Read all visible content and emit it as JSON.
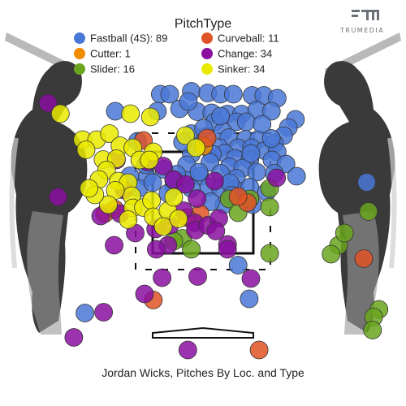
{
  "chart_data": {
    "type": "scatter",
    "title": "PitchType",
    "caption": "Jordan Wicks, Pitches By Loc. and Type",
    "logo": "TRUMEDIA",
    "legend_placement": "top-center",
    "series": [
      {
        "name": "Fastball (4S)",
        "count": 89,
        "color": "#4a78d6",
        "points": [
          [
            -0.73,
            3.92
          ],
          [
            -0.57,
            3.92
          ],
          [
            -0.2,
            3.99
          ],
          [
            0.08,
            3.95
          ],
          [
            0.3,
            3.92
          ],
          [
            0.52,
            3.92
          ],
          [
            0.84,
            3.89
          ],
          [
            1.04,
            3.89
          ],
          [
            1.27,
            3.82
          ],
          [
            -1.5,
            3.5
          ],
          [
            -0.78,
            3.5
          ],
          [
            -0.4,
            3.56
          ],
          [
            -0.1,
            3.49
          ],
          [
            0.15,
            3.46
          ],
          [
            0.42,
            3.43
          ],
          [
            0.66,
            3.43
          ],
          [
            0.92,
            3.53
          ],
          [
            1.17,
            3.5
          ],
          [
            1.58,
            3.3
          ],
          [
            1.46,
            3.1
          ],
          [
            1.38,
            2.9
          ],
          [
            0.2,
            3.24
          ],
          [
            0.57,
            3.24
          ],
          [
            0.74,
            3.24
          ],
          [
            0.34,
            3.0
          ],
          [
            -0.2,
            2.95
          ],
          [
            0.05,
            2.88
          ],
          [
            0.44,
            2.85
          ],
          [
            0.73,
            2.81
          ],
          [
            0.95,
            2.81
          ],
          [
            1.22,
            2.71
          ],
          [
            -0.08,
            2.63
          ],
          [
            0.28,
            2.6
          ],
          [
            0.6,
            2.6
          ],
          [
            0.83,
            2.6
          ],
          [
            1.05,
            2.53
          ],
          [
            1.27,
            2.5
          ],
          [
            0.37,
            2.47
          ],
          [
            0.16,
            2.44
          ],
          [
            -0.2,
            2.44
          ],
          [
            0.55,
            2.34
          ],
          [
            0.8,
            2.3
          ],
          [
            1.18,
            2.3
          ],
          [
            1.42,
            2.2
          ],
          [
            0.12,
            2.24
          ],
          [
            -0.28,
            2.18
          ],
          [
            0.45,
            2.13
          ],
          [
            0.68,
            2.1
          ],
          [
            0.92,
            2.0
          ],
          [
            1.22,
            1.97
          ],
          [
            1.6,
            1.9
          ],
          [
            0.3,
            1.97
          ],
          [
            -0.05,
            1.9
          ],
          [
            0.57,
            1.85
          ],
          [
            -0.28,
            1.8
          ],
          [
            -0.45,
            1.95
          ],
          [
            -0.67,
            2.07
          ],
          [
            -0.96,
            1.87
          ],
          [
            -1.1,
            1.6
          ],
          [
            -0.5,
            1.65
          ],
          [
            -0.2,
            1.6
          ],
          [
            0.1,
            1.63
          ],
          [
            0.3,
            1.6
          ],
          [
            0.55,
            1.57
          ],
          [
            0.8,
            1.63
          ],
          [
            -0.6,
            1.48
          ],
          [
            0.36,
            1.2
          ],
          [
            0.85,
            1.2
          ],
          [
            2.8,
            1.75
          ],
          [
            0.6,
            -0.29
          ],
          [
            0.79,
            -1.12
          ],
          [
            -2.02,
            -1.47
          ],
          [
            -0.86,
            1.74
          ],
          [
            -0.35,
            2.74
          ],
          [
            1.01,
            3.18
          ],
          [
            -1.25,
            1.91
          ],
          [
            0.13,
            1.27
          ],
          [
            -0.5,
            1.8
          ],
          [
            0.46,
            1.74
          ],
          [
            1.09,
            1.51
          ],
          [
            -0.25,
            3.74
          ],
          [
            0.01,
            3.08
          ],
          [
            0.3,
            3.38
          ],
          [
            -1.12,
            2.76
          ],
          [
            0.49,
            1.43
          ],
          [
            -0.98,
            2.18
          ],
          [
            1.17,
            2.83
          ],
          [
            -0.07,
            2.0
          ],
          [
            0.82,
            2.46
          ]
        ]
      },
      {
        "name": "Cutter",
        "count": 1,
        "color": "#f08c00",
        "points": [
          [
            0.01,
            2.64
          ]
        ]
      },
      {
        "name": "Slider",
        "count": 16,
        "color": "#6aa51f",
        "points": [
          [
            0.45,
            1.34
          ],
          [
            0.8,
            1.34
          ],
          [
            1.14,
            1.14
          ],
          [
            1.14,
            1.6
          ],
          [
            0.6,
            1.0
          ],
          [
            -0.35,
            0.37
          ],
          [
            -0.2,
            0.1
          ],
          [
            1.14,
            0.0
          ],
          [
            2.32,
            0.2
          ],
          [
            2.42,
            0.5
          ],
          [
            2.19,
            -0.02
          ],
          [
            3.01,
            -1.38
          ],
          [
            2.92,
            -1.57
          ],
          [
            2.9,
            -1.89
          ],
          [
            -0.5,
            0.3
          ],
          [
            2.83,
            1.03
          ]
        ]
      },
      {
        "name": "Curveball",
        "count": 11,
        "color": "#e05326",
        "points": [
          [
            -1.02,
            2.78
          ],
          [
            0.07,
            2.84
          ],
          [
            0.76,
            1.25
          ],
          [
            0.6,
            1.4
          ],
          [
            -0.05,
            0.98
          ],
          [
            -0.28,
            0.88
          ],
          [
            -1.68,
            0.98
          ],
          [
            -1.51,
            1.09
          ],
          [
            2.75,
            -0.13
          ],
          [
            -0.85,
            -1.15
          ],
          [
            0.96,
            -2.38
          ]
        ]
      },
      {
        "name": "Change",
        "count": 34,
        "color": "#8a0fa0",
        "points": [
          [
            -2.65,
            3.7
          ],
          [
            -1.48,
            2.3
          ],
          [
            -0.95,
            2.25
          ],
          [
            -0.68,
            2.15
          ],
          [
            -0.5,
            1.82
          ],
          [
            -0.3,
            1.7
          ],
          [
            -0.1,
            1.35
          ],
          [
            0.2,
            1.78
          ],
          [
            -1.35,
            1.56
          ],
          [
            -1.42,
            0.98
          ],
          [
            -1.75,
            0.92
          ],
          [
            -1.16,
            0.5
          ],
          [
            -1.52,
            0.2
          ],
          [
            -0.81,
            0.6
          ],
          [
            -0.57,
            0.69
          ],
          [
            -0.33,
            1.05
          ],
          [
            -0.14,
            0.75
          ],
          [
            -0.13,
            0.57
          ],
          [
            0.08,
            0.69
          ],
          [
            0.27,
            0.86
          ],
          [
            -0.6,
            0.2
          ],
          [
            -0.8,
            0.1
          ],
          [
            0.42,
            0.22
          ],
          [
            0.22,
            0.55
          ],
          [
            -0.7,
            -0.6
          ],
          [
            -1.0,
            -1.0
          ],
          [
            -0.09,
            -0.57
          ],
          [
            0.42,
            0.1
          ],
          [
            -1.7,
            -1.45
          ],
          [
            0.82,
            -0.62
          ],
          [
            1.26,
            1.86
          ],
          [
            -2.21,
            -2.07
          ],
          [
            -0.26,
            -2.38
          ],
          [
            -2.48,
            1.39
          ]
        ]
      },
      {
        "name": "Sinker",
        "count": 34,
        "color": "#eaea00",
        "points": [
          [
            -1.24,
            3.44
          ],
          [
            -0.9,
            3.36
          ],
          [
            -2.06,
            2.8
          ],
          [
            -1.82,
            2.8
          ],
          [
            -1.6,
            2.95
          ],
          [
            -1.42,
            2.65
          ],
          [
            -1.2,
            2.6
          ],
          [
            -1.08,
            2.3
          ],
          [
            -0.85,
            2.5
          ],
          [
            -0.92,
            2.3
          ],
          [
            -1.71,
            2.31
          ],
          [
            -1.48,
            2.33
          ],
          [
            -2.0,
            2.55
          ],
          [
            -1.65,
            2.05
          ],
          [
            -1.78,
            1.82
          ],
          [
            -1.45,
            1.78
          ],
          [
            -1.28,
            1.74
          ],
          [
            -1.22,
            1.42
          ],
          [
            -1.5,
            1.55
          ],
          [
            -1.2,
            1.12
          ],
          [
            -1.02,
            1.13
          ],
          [
            -0.88,
            1.3
          ],
          [
            -1.62,
            1.2
          ],
          [
            -1.85,
            1.44
          ],
          [
            -0.85,
            0.9
          ],
          [
            -0.6,
            1.05
          ],
          [
            -0.5,
            1.38
          ],
          [
            -0.68,
            0.66
          ],
          [
            -0.42,
            0.85
          ],
          [
            -1.28,
            0.83
          ],
          [
            -0.3,
            2.9
          ],
          [
            -0.12,
            2.6
          ],
          [
            -2.44,
            3.44
          ],
          [
            -1.95,
            1.6
          ]
        ]
      }
    ]
  }
}
